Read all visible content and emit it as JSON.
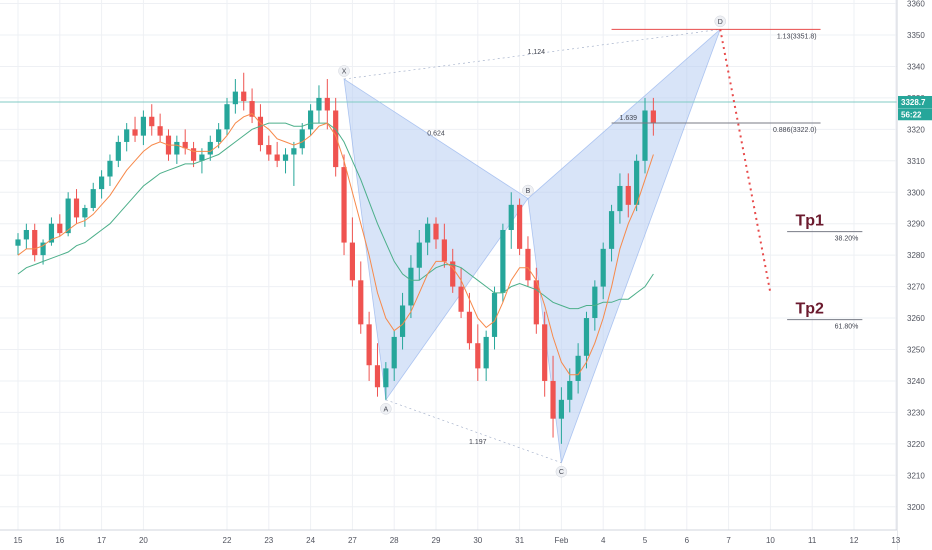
{
  "chart_data": {
    "type": "candlestick",
    "y_axis": {
      "ticks": [
        3360,
        3350,
        3340,
        3330,
        3320,
        3310,
        3300,
        3290,
        3280,
        3270,
        3260,
        3250,
        3240,
        3230,
        3220,
        3210,
        3200
      ],
      "range": [
        3195,
        3362
      ]
    },
    "x_axis": {
      "labels": [
        {
          "text": "15",
          "i": 0
        },
        {
          "text": "16",
          "i": 5
        },
        {
          "text": "17",
          "i": 10
        },
        {
          "text": "20",
          "i": 15
        },
        {
          "text": "22",
          "i": 25
        },
        {
          "text": "23",
          "i": 30
        },
        {
          "text": "24",
          "i": 35
        },
        {
          "text": "27",
          "i": 40
        },
        {
          "text": "28",
          "i": 45
        },
        {
          "text": "29",
          "i": 50
        },
        {
          "text": "30",
          "i": 55
        },
        {
          "text": "31",
          "i": 60
        },
        {
          "text": "Feb",
          "i": 65
        },
        {
          "text": "4",
          "i": 70
        },
        {
          "text": "5",
          "i": 75
        },
        {
          "text": "6",
          "i": 80
        },
        {
          "text": "7",
          "i": 85
        },
        {
          "text": "10",
          "i": 90
        },
        {
          "text": "11",
          "i": 95
        },
        {
          "text": "12",
          "i": 100
        },
        {
          "text": "13",
          "i": 105
        }
      ]
    },
    "colors": {
      "up": "#26a69a",
      "down": "#ef5350",
      "ema_fast": "#f7894a",
      "ema_slow": "#4caf8a",
      "pattern": "#b8cef2",
      "line": "#80cbc4",
      "target": "#e84b4b"
    },
    "candles": [
      [
        3283,
        3287,
        3280,
        3285
      ],
      [
        3285,
        3290,
        3282,
        3288
      ],
      [
        3288,
        3290,
        3278,
        3280
      ],
      [
        3280,
        3285,
        3277,
        3284
      ],
      [
        3284,
        3292,
        3283,
        3290
      ],
      [
        3290,
        3293,
        3286,
        3287
      ],
      [
        3287,
        3300,
        3286,
        3298
      ],
      [
        3298,
        3301,
        3290,
        3292
      ],
      [
        3292,
        3296,
        3289,
        3295
      ],
      [
        3295,
        3303,
        3294,
        3301
      ],
      [
        3301,
        3307,
        3298,
        3305
      ],
      [
        3305,
        3312,
        3302,
        3310
      ],
      [
        3310,
        3318,
        3308,
        3316
      ],
      [
        3316,
        3322,
        3313,
        3320
      ],
      [
        3320,
        3324,
        3316,
        3318
      ],
      [
        3318,
        3326,
        3315,
        3324
      ],
      [
        3324,
        3328,
        3318,
        3321
      ],
      [
        3321,
        3325,
        3316,
        3318
      ],
      [
        3318,
        3320,
        3310,
        3312
      ],
      [
        3312,
        3318,
        3309,
        3316
      ],
      [
        3316,
        3320,
        3312,
        3314
      ],
      [
        3314,
        3316,
        3308,
        3310
      ],
      [
        3310,
        3314,
        3306,
        3312
      ],
      [
        3312,
        3318,
        3310,
        3316
      ],
      [
        3316,
        3322,
        3314,
        3320
      ],
      [
        3320,
        3330,
        3318,
        3328
      ],
      [
        3328,
        3336,
        3325,
        3332
      ],
      [
        3332,
        3338,
        3326,
        3329
      ],
      [
        3329,
        3333,
        3322,
        3324
      ],
      [
        3324,
        3328,
        3313,
        3315
      ],
      [
        3315,
        3318,
        3310,
        3312
      ],
      [
        3312,
        3316,
        3308,
        3310
      ],
      [
        3310,
        3314,
        3306,
        3312
      ],
      [
        3312,
        3316,
        3302,
        3314
      ],
      [
        3314,
        3322,
        3312,
        3320
      ],
      [
        3320,
        3328,
        3318,
        3326
      ],
      [
        3326,
        3334,
        3322,
        3330
      ],
      [
        3330,
        3336,
        3320,
        3326
      ],
      [
        3326,
        3330,
        3305,
        3308
      ],
      [
        3308,
        3312,
        3280,
        3284
      ],
      [
        3284,
        3292,
        3270,
        3272
      ],
      [
        3272,
        3278,
        3255,
        3258
      ],
      [
        3258,
        3262,
        3240,
        3245
      ],
      [
        3245,
        3252,
        3235,
        3238
      ],
      [
        3238,
        3246,
        3234,
        3244
      ],
      [
        3244,
        3256,
        3240,
        3254
      ],
      [
        3254,
        3268,
        3250,
        3264
      ],
      [
        3264,
        3280,
        3260,
        3276
      ],
      [
        3276,
        3288,
        3272,
        3284
      ],
      [
        3284,
        3292,
        3280,
        3290
      ],
      [
        3290,
        3292,
        3282,
        3285
      ],
      [
        3285,
        3290,
        3276,
        3278
      ],
      [
        3278,
        3282,
        3268,
        3270
      ],
      [
        3270,
        3276,
        3260,
        3262
      ],
      [
        3262,
        3268,
        3250,
        3252
      ],
      [
        3252,
        3258,
        3240,
        3244
      ],
      [
        3244,
        3256,
        3240,
        3254
      ],
      [
        3254,
        3270,
        3250,
        3268
      ],
      [
        3268,
        3290,
        3265,
        3288
      ],
      [
        3288,
        3300,
        3282,
        3296
      ],
      [
        3296,
        3298,
        3280,
        3282
      ],
      [
        3282,
        3286,
        3270,
        3272
      ],
      [
        3272,
        3276,
        3255,
        3258
      ],
      [
        3258,
        3262,
        3235,
        3240
      ],
      [
        3240,
        3248,
        3222,
        3228
      ],
      [
        3228,
        3238,
        3220,
        3234
      ],
      [
        3234,
        3244,
        3230,
        3240
      ],
      [
        3240,
        3252,
        3236,
        3248
      ],
      [
        3248,
        3262,
        3244,
        3260
      ],
      [
        3260,
        3272,
        3256,
        3270
      ],
      [
        3270,
        3284,
        3266,
        3282
      ],
      [
        3282,
        3296,
        3278,
        3294
      ],
      [
        3294,
        3306,
        3290,
        3302
      ],
      [
        3302,
        3306,
        3292,
        3296
      ],
      [
        3296,
        3312,
        3294,
        3310
      ],
      [
        3310,
        3330,
        3306,
        3326
      ],
      [
        3326,
        3330,
        3318,
        3322
      ]
    ],
    "ema_fast": [
      3280,
      3282,
      3282,
      3283,
      3285,
      3286,
      3288,
      3290,
      3291,
      3293,
      3296,
      3299,
      3303,
      3307,
      3310,
      3313,
      3315,
      3316,
      3315,
      3315,
      3314,
      3313,
      3313,
      3313,
      3315,
      3318,
      3322,
      3324,
      3325,
      3322,
      3320,
      3317,
      3316,
      3315,
      3316,
      3318,
      3321,
      3322,
      3318,
      3310,
      3300,
      3290,
      3280,
      3268,
      3260,
      3256,
      3258,
      3262,
      3268,
      3274,
      3278,
      3278,
      3276,
      3272,
      3266,
      3260,
      3257,
      3259,
      3265,
      3272,
      3276,
      3276,
      3272,
      3264,
      3254,
      3246,
      3242,
      3242,
      3246,
      3252,
      3260,
      3270,
      3282,
      3290,
      3296,
      3304,
      3312
    ],
    "ema_slow": [
      3274,
      3276,
      3277,
      3278,
      3279,
      3280,
      3281,
      3283,
      3284,
      3286,
      3288,
      3290,
      3293,
      3296,
      3299,
      3302,
      3304,
      3306,
      3307,
      3308,
      3309,
      3309,
      3310,
      3311,
      3312,
      3314,
      3316,
      3318,
      3320,
      3321,
      3322,
      3322,
      3322,
      3321,
      3321,
      3322,
      3322,
      3322,
      3320,
      3316,
      3310,
      3304,
      3297,
      3290,
      3284,
      3278,
      3274,
      3272,
      3272,
      3274,
      3276,
      3277,
      3277,
      3276,
      3274,
      3272,
      3270,
      3268,
      3268,
      3270,
      3271,
      3270,
      3269,
      3267,
      3265,
      3264,
      3263,
      3263,
      3264,
      3264,
      3265,
      3265,
      3266,
      3266,
      3268,
      3270,
      3274
    ],
    "harmonic_pattern": {
      "points": [
        {
          "label": "X",
          "i": 39,
          "price": 3336
        },
        {
          "label": "A",
          "i": 44,
          "price": 3234
        },
        {
          "label": "B",
          "i": 61,
          "price": 3298
        },
        {
          "label": "C",
          "i": 65,
          "price": 3214
        },
        {
          "label": "D",
          "i": 84,
          "price": 3351.8
        }
      ],
      "ratios": [
        {
          "text": "1.124",
          "i": 62,
          "price": 3344
        },
        {
          "text": "0.624",
          "i": 50,
          "price": 3318
        },
        {
          "text": "1.197",
          "i": 55,
          "price": 3220
        },
        {
          "text": "1.639",
          "i": 73,
          "price": 3323
        }
      ]
    },
    "levels": [
      {
        "text": "1.13(3351.8)",
        "price": 3351.8,
        "i_start": 71,
        "i_end": 96,
        "color": "#e84b4b"
      },
      {
        "text": "0.886(3322.0)",
        "price": 3322,
        "i_start": 71,
        "i_end": 96,
        "color": "#787b86"
      },
      {
        "text": "38.20%",
        "price": 3287.5,
        "i_start": 92,
        "i_end": 101,
        "color": "#787b86"
      },
      {
        "text": "61.80%",
        "price": 3259.5,
        "i_start": 92,
        "i_end": 101,
        "color": "#787b86"
      }
    ],
    "targets": [
      {
        "text": "Tp1",
        "i": 93,
        "price": 3289.5
      },
      {
        "text": "Tp2",
        "i": 93,
        "price": 3261.5
      }
    ],
    "projection": {
      "from": {
        "i": 84,
        "price": 3351.8
      },
      "to": {
        "i": 90,
        "price": 3268
      }
    },
    "horizontal_line": {
      "price": 3328.7
    },
    "price_tags": [
      {
        "text": "3328.7",
        "price": 3328.7,
        "color": "#26a69a"
      },
      {
        "text": "56:22",
        "price": 3324.8,
        "color": "#26a69a"
      }
    ]
  }
}
